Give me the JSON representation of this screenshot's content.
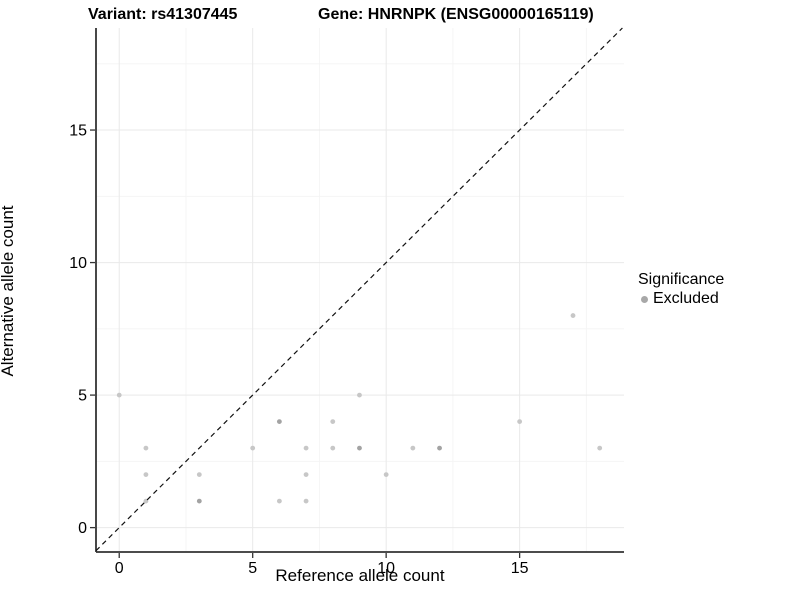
{
  "figure": {
    "title_left": "Variant: rs41307445",
    "title_right": "Gene: HNRNPK (ENSG00000165119)",
    "xlabel": "Reference allele count",
    "ylabel": "Alternative allele count",
    "legend": {
      "title": "Significance",
      "items": [
        {
          "label": "Excluded",
          "color": "#a8a8a8"
        }
      ]
    },
    "colors": {
      "point": "#c7c7c7",
      "point_dark": "#a3a3a3",
      "grid_major": "#e9e9e9",
      "grid_minor": "#f4f4f4",
      "axis": "#333333",
      "identity_line": "#111111",
      "text": "#000000",
      "legend_dot": "#a8a8a8"
    }
  },
  "chart_data": {
    "type": "scatter",
    "title": "Variant: rs41307445  /  Gene: HNRNPK (ENSG00000165119)",
    "xlabel": "Reference allele count",
    "ylabel": "Alternative allele count",
    "xlim": [
      -0.87,
      18.91
    ],
    "ylim": [
      -0.92,
      18.85
    ],
    "x_ticks": [
      0,
      5,
      10,
      15
    ],
    "y_ticks": [
      0,
      5,
      10,
      15
    ],
    "x_minor_ticks": [
      2.5,
      7.5,
      12.5,
      17.5
    ],
    "y_minor_ticks": [
      2.5,
      7.5,
      12.5,
      17.5
    ],
    "grid": true,
    "identity_line": {
      "style": "dashed",
      "equation": "y = x"
    },
    "legend_position": "right",
    "series": [
      {
        "name": "Excluded",
        "points": [
          {
            "x": 0,
            "y": 5,
            "n": 1
          },
          {
            "x": 1,
            "y": 1,
            "n": 1
          },
          {
            "x": 1,
            "y": 2,
            "n": 1
          },
          {
            "x": 1,
            "y": 3,
            "n": 1
          },
          {
            "x": 3,
            "y": 1,
            "n": 2
          },
          {
            "x": 3,
            "y": 2,
            "n": 1
          },
          {
            "x": 5,
            "y": 3,
            "n": 1
          },
          {
            "x": 6,
            "y": 1,
            "n": 1
          },
          {
            "x": 6,
            "y": 4,
            "n": 2
          },
          {
            "x": 7,
            "y": 1,
            "n": 1
          },
          {
            "x": 7,
            "y": 2,
            "n": 1
          },
          {
            "x": 7,
            "y": 3,
            "n": 1
          },
          {
            "x": 8,
            "y": 3,
            "n": 1
          },
          {
            "x": 8,
            "y": 4,
            "n": 1
          },
          {
            "x": 9,
            "y": 3,
            "n": 2
          },
          {
            "x": 9,
            "y": 5,
            "n": 1
          },
          {
            "x": 10,
            "y": 2,
            "n": 1
          },
          {
            "x": 11,
            "y": 3,
            "n": 1
          },
          {
            "x": 12,
            "y": 3,
            "n": 2
          },
          {
            "x": 15,
            "y": 4,
            "n": 1
          },
          {
            "x": 17,
            "y": 8,
            "n": 1
          },
          {
            "x": 18,
            "y": 3,
            "n": 1
          }
        ]
      }
    ]
  }
}
